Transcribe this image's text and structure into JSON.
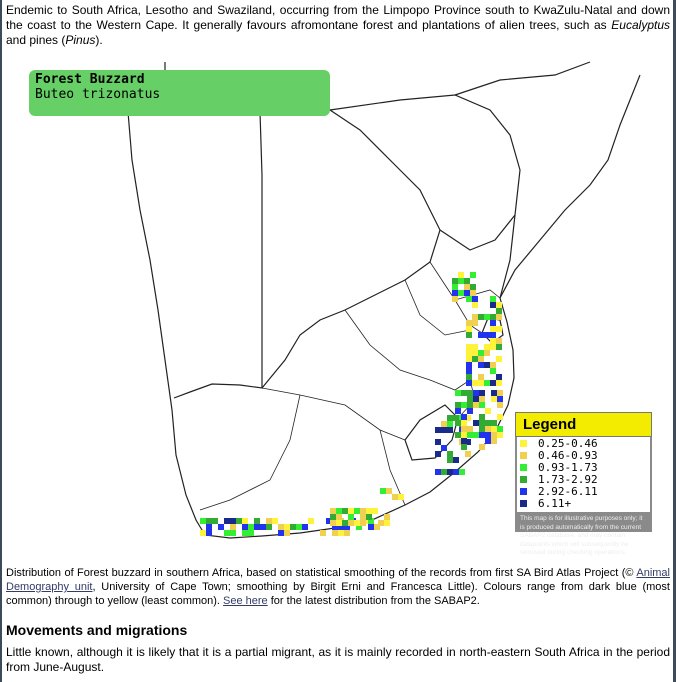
{
  "intro": {
    "before_italic1": "Endemic to South Africa, Lesotho and Swaziland, occurring from the Limpopo Province south to KwaZulu-Natal and down the coast to the Western Cape. It generally favours afromontane forest and plantations of alien trees, such as ",
    "italic1": "Eucalyptus",
    "mid": " and pines (",
    "italic2": "Pinus",
    "end": ")."
  },
  "map": {
    "common_name": "Forest Buzzard",
    "scientific_name": "Buteo trizonatus",
    "legend": {
      "title": "Legend",
      "items": [
        {
          "label": "0.25-0.46",
          "color": "#fff23a"
        },
        {
          "label": "0.46-0.93",
          "color": "#f0d050"
        },
        {
          "label": "0.93-1.73",
          "color": "#33ee33"
        },
        {
          "label": "1.73-2.92",
          "color": "#33aa33"
        },
        {
          "label": "2.92-6.11",
          "color": "#2233ee"
        },
        {
          "label": "6.11+",
          "color": "#1a2a8a"
        }
      ],
      "note": "This map is for illustrative purposes only; it is produced automatically from the current SABAP2 database, and may contain datapoints which will subsequently be removed during checking operations."
    }
  },
  "caption": {
    "text1": "Distribution of Forest buzzard in southern Africa, based on statistical smoothing of the records from first SA Bird Atlas Project (© ",
    "link1": "Animal Demography unit",
    "text2": ", University of Cape Town; smoothing by Birgit Erni and Francesca Little). Colours range from dark blue (most common) through to yellow (least common). ",
    "link2": "See here",
    "text3": " for the latest distribution from the SABAP2."
  },
  "movements": {
    "heading": "Movements and migrations",
    "text": "Little known, although it is likely that it is a partial migrant, as it is mainly recorded in north-eastern South Africa in the period from June-August."
  }
}
